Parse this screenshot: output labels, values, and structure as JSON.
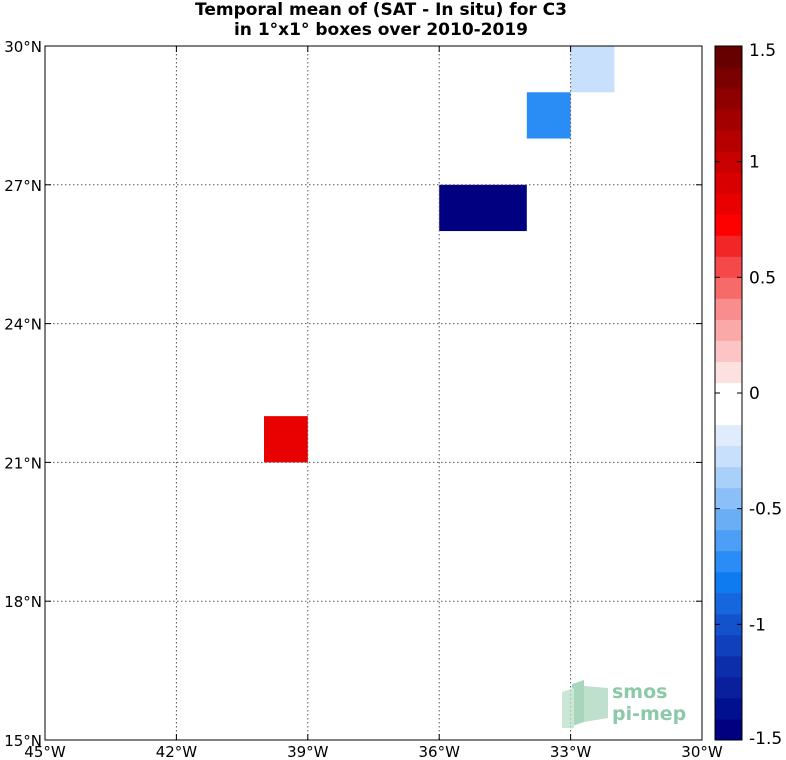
{
  "title_line1": "Temporal mean of (SAT - In situ) for C3",
  "title_line2": "in 1°x1° boxes over 2010-2019",
  "logo": {
    "line1": "smos",
    "line2": "pi-mep",
    "color": "#8cc9a8"
  },
  "chart_data": {
    "type": "heatmap",
    "title": "Temporal mean of (SAT - In situ) for C3 in 1°x1° boxes over 2010-2019",
    "x_ticks": [
      -45,
      -42,
      -39,
      -36,
      -33,
      -30
    ],
    "x_tick_labels": [
      "45°W",
      "42°W",
      "39°W",
      "36°W",
      "33°W",
      "30°W"
    ],
    "y_ticks": [
      15,
      18,
      21,
      24,
      27,
      30
    ],
    "y_tick_labels": [
      "15°N",
      "18°N",
      "21°N",
      "24°N",
      "27°N",
      "30°N"
    ],
    "xlim": [
      -45,
      -30
    ],
    "ylim": [
      15,
      30
    ],
    "grid": true,
    "colorbar": {
      "range": [
        -1.5,
        1.5
      ],
      "ticks": [
        -1.5,
        -1,
        -0.5,
        0,
        0.5,
        1,
        1.5
      ],
      "tick_labels": [
        "-1.5",
        "-1",
        "-0.5",
        "0",
        "0.5",
        "1",
        "1.5"
      ],
      "colors": [
        "#000080",
        "#00108f",
        "#0a1f9c",
        "#0d2eab",
        "#1040bb",
        "#1452cc",
        "#1666dd",
        "#0f7bf0",
        "#2a8cf5",
        "#4c9ff5",
        "#6aaff5",
        "#8ac0f7",
        "#a9d0f9",
        "#c8e0fb",
        "#e0ecfc",
        "#ffffff",
        "#ffffff",
        "#fde0e0",
        "#fcc4c4",
        "#fba8a8",
        "#f98c8c",
        "#f76a6a",
        "#f54848",
        "#f22626",
        "#ff0000",
        "#e90000",
        "#d80000",
        "#c80000",
        "#b50000",
        "#a20000",
        "#8e0000",
        "#7a0000",
        "#660000"
      ]
    },
    "cells": [
      {
        "lon": -40,
        "lat": 21,
        "value": 0.8
      },
      {
        "lon": -36,
        "lat": 26,
        "value": -1.42
      },
      {
        "lon": -35,
        "lat": 26,
        "value": -1.47
      },
      {
        "lon": -34,
        "lat": 28,
        "value": -0.7
      },
      {
        "lon": -33,
        "lat": 29,
        "value": -0.28
      }
    ]
  }
}
